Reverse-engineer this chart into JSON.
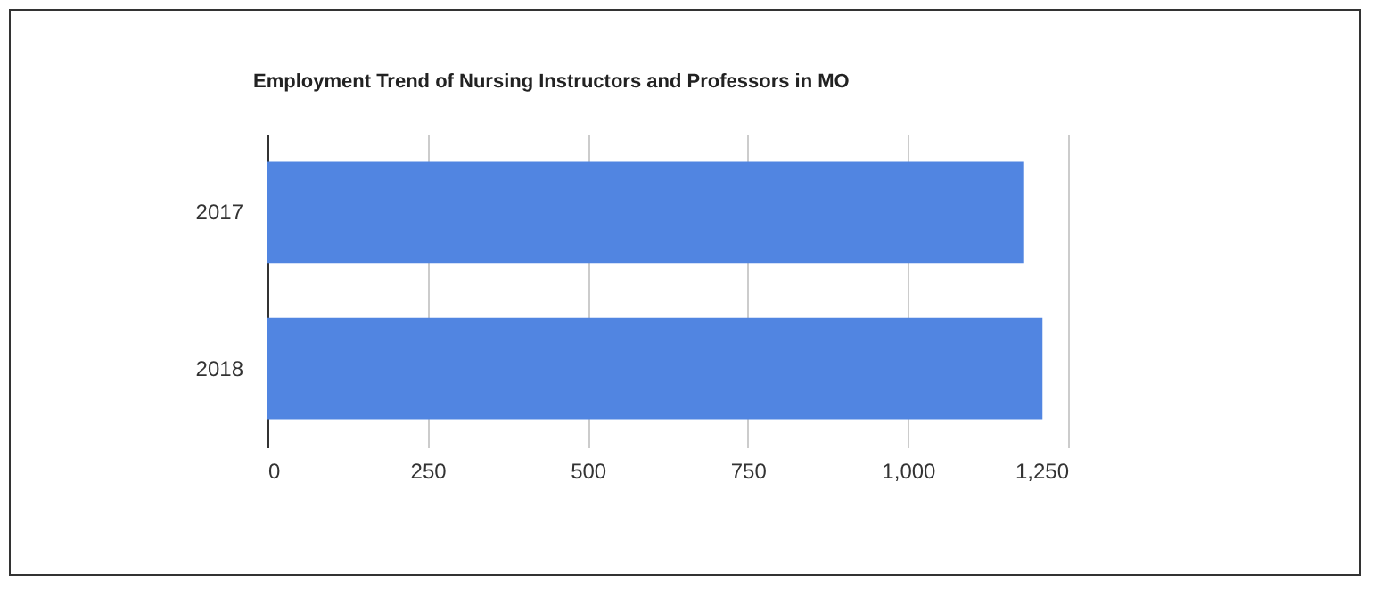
{
  "chart_data": {
    "type": "bar",
    "orientation": "horizontal",
    "title": "Employment Trend of Nursing Instructors and Professors in MO",
    "categories": [
      "2017",
      "2018"
    ],
    "values": [
      1180,
      1210
    ],
    "color": "#5185e1",
    "xlim": [
      0,
      1250
    ],
    "xticks": [
      0,
      250,
      500,
      750,
      {
        "value": 1000,
        "label": "1,000"
      },
      {
        "value": 1250,
        "label": "1,250"
      }
    ],
    "grid": "x"
  }
}
